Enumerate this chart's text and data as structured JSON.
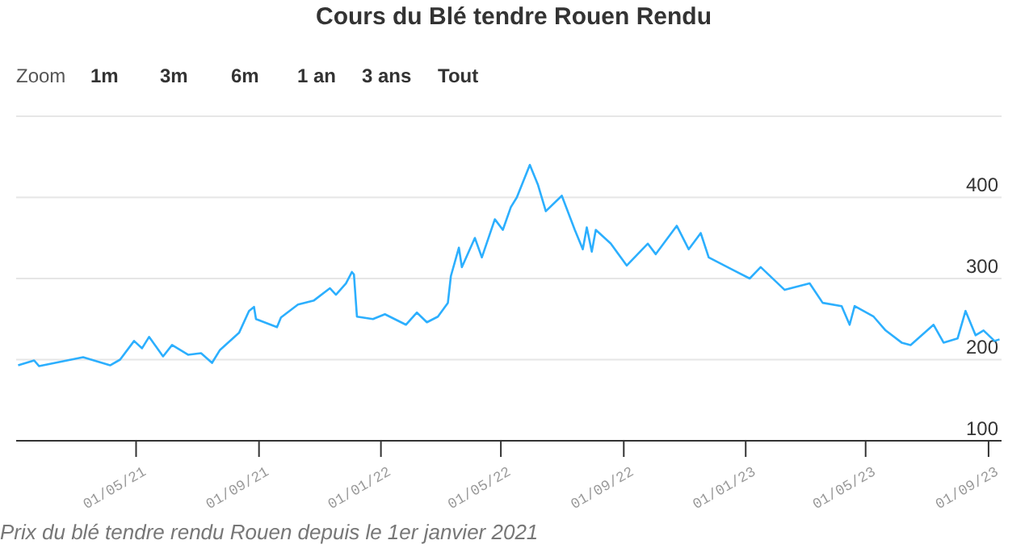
{
  "chart_data": {
    "type": "line",
    "title": "Cours du Blé tendre Rouen Rendu",
    "annotations": [
      "Zoom",
      "1m",
      "3m",
      "6m",
      "1 an",
      "3 ans",
      "Tout",
      "Prix du blé tendre rendu Rouen depuis le 1er janvier 2021"
    ],
    "x": [
      "2021-01-03",
      "2021-01-19",
      "2021-01-24",
      "2021-03-09",
      "2021-04-05",
      "2021-04-15",
      "2021-04-29",
      "2021-05-07",
      "2021-05-14",
      "2021-05-28",
      "2021-06-06",
      "2021-06-22",
      "2021-07-05",
      "2021-07-16",
      "2021-07-24",
      "2021-08-12",
      "2021-08-22",
      "2021-08-27",
      "2021-08-29",
      "2021-09-19",
      "2021-09-23",
      "2021-10-10",
      "2021-10-26",
      "2021-11-11",
      "2021-11-17",
      "2021-11-27",
      "2021-12-03",
      "2021-12-05",
      "2021-12-08",
      "2021-12-24",
      "2022-01-05",
      "2022-01-26",
      "2022-02-06",
      "2022-02-16",
      "2022-02-27",
      "2022-03-09",
      "2022-03-12",
      "2022-03-20",
      "2022-03-23",
      "2022-04-05",
      "2022-04-12",
      "2022-04-25",
      "2022-05-03",
      "2022-05-11",
      "2022-05-17",
      "2022-05-30",
      "2022-06-07",
      "2022-06-15",
      "2022-07-01",
      "2022-07-14",
      "2022-07-22",
      "2022-07-26",
      "2022-07-31",
      "2022-08-04",
      "2022-08-19",
      "2022-09-04",
      "2022-09-25",
      "2022-10-03",
      "2022-10-24",
      "2022-11-05",
      "2022-11-17",
      "2022-11-25",
      "2022-12-20",
      "2023-01-05",
      "2023-01-16",
      "2023-02-09",
      "2023-03-06",
      "2023-03-19",
      "2023-04-07",
      "2023-04-15",
      "2023-04-20",
      "2023-05-09",
      "2023-05-21",
      "2023-06-06",
      "2023-06-15",
      "2023-07-08",
      "2023-07-18",
      "2023-08-01",
      "2023-08-09",
      "2023-08-19",
      "2023-08-27",
      "2023-09-07",
      "2023-09-12"
    ],
    "series": [
      {
        "color": "#2caffe",
        "values": [
          193,
          199,
          192,
          203,
          193,
          200,
          223,
          214,
          228,
          204,
          218,
          206,
          208,
          196,
          212,
          233,
          260,
          265,
          250,
          240,
          252,
          268,
          273,
          288,
          280,
          294,
          308,
          305,
          253,
          250,
          256,
          243,
          258,
          246,
          253,
          270,
          303,
          338,
          314,
          350,
          326,
          373,
          360,
          388,
          400,
          440,
          416,
          383,
          402,
          360,
          336,
          363,
          333,
          360,
          343,
          316,
          343,
          330,
          365,
          336,
          356,
          326,
          310,
          300,
          314,
          286,
          294,
          270,
          266,
          243,
          266,
          253,
          236,
          221,
          218,
          243,
          221,
          226,
          260,
          230,
          236,
          223,
          225
        ]
      }
    ],
    "xlim": [
      "2021-01-01",
      "2023-09-14"
    ],
    "xticks": [
      {
        "value": "2021-05-01",
        "label": "01/05/21"
      },
      {
        "value": "2021-09-01",
        "label": "01/09/21"
      },
      {
        "value": "2022-01-01",
        "label": "01/01/22"
      },
      {
        "value": "2022-05-01",
        "label": "01/05/22"
      },
      {
        "value": "2022-09-01",
        "label": "01/09/22"
      },
      {
        "value": "2023-01-01",
        "label": "01/01/23"
      },
      {
        "value": "2023-05-01",
        "label": "01/05/23"
      },
      {
        "value": "2023-09-01",
        "label": "01/09/23"
      }
    ],
    "ylim": [
      100,
      500
    ],
    "yticks": [
      100,
      200,
      300,
      400,
      {
        "value": 500,
        "label": null
      }
    ],
    "grid": "y",
    "marker": "none",
    "line_style": "solid"
  }
}
